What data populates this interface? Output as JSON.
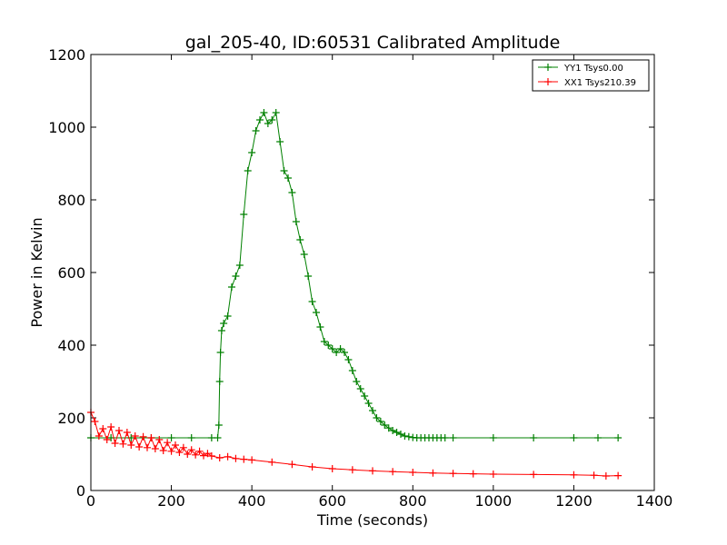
{
  "chart_data": {
    "type": "line",
    "title": "gal_205-40, ID:60531 Calibrated Amplitude",
    "xlabel": "Time (seconds)",
    "ylabel": "Power in Kelvin",
    "xlim": [
      0,
      1400
    ],
    "ylim": [
      0,
      1200
    ],
    "xticks": [
      "0",
      "200",
      "400",
      "600",
      "800",
      "1000",
      "1200",
      "1400"
    ],
    "yticks": [
      "0",
      "200",
      "400",
      "600",
      "800",
      "1000",
      "1200"
    ],
    "grid": false,
    "legend_position": "top-right",
    "marker": "+",
    "series": [
      {
        "name": "YY1 Tsys0.00",
        "color": "#008000",
        "x": [
          0,
          50,
          100,
          150,
          200,
          250,
          300,
          315,
          318,
          320,
          322,
          325,
          330,
          340,
          350,
          360,
          370,
          380,
          390,
          400,
          410,
          420,
          430,
          440,
          450,
          460,
          470,
          480,
          490,
          500,
          510,
          520,
          530,
          540,
          550,
          560,
          570,
          580,
          590,
          600,
          610,
          620,
          630,
          640,
          650,
          660,
          670,
          680,
          690,
          700,
          710,
          720,
          730,
          740,
          750,
          760,
          770,
          780,
          790,
          800,
          810,
          820,
          830,
          840,
          850,
          860,
          870,
          880,
          900,
          1000,
          1100,
          1200,
          1260,
          1310
        ],
        "values": [
          145,
          145,
          145,
          145,
          145,
          145,
          145,
          145,
          180,
          300,
          380,
          440,
          460,
          480,
          560,
          590,
          620,
          760,
          880,
          930,
          990,
          1020,
          1040,
          1010,
          1020,
          1040,
          960,
          880,
          860,
          820,
          740,
          690,
          650,
          590,
          520,
          490,
          450,
          410,
          400,
          390,
          380,
          390,
          380,
          360,
          330,
          300,
          280,
          260,
          240,
          220,
          200,
          190,
          180,
          172,
          165,
          160,
          155,
          150,
          148,
          146,
          145,
          145,
          145,
          145,
          145,
          145,
          145,
          145,
          145,
          145,
          145,
          145,
          145,
          145
        ]
      },
      {
        "name": "XX1 Tsys210.39",
        "color": "#ff0000",
        "x": [
          0,
          10,
          20,
          30,
          40,
          50,
          60,
          70,
          80,
          90,
          100,
          110,
          120,
          130,
          140,
          150,
          160,
          170,
          180,
          190,
          200,
          210,
          220,
          230,
          240,
          250,
          260,
          270,
          280,
          290,
          300,
          320,
          340,
          360,
          380,
          400,
          450,
          500,
          550,
          600,
          650,
          700,
          750,
          800,
          850,
          900,
          950,
          1000,
          1100,
          1200,
          1250,
          1280,
          1310
        ],
        "values": [
          215,
          190,
          150,
          170,
          140,
          175,
          130,
          165,
          128,
          160,
          125,
          150,
          120,
          148,
          118,
          145,
          115,
          140,
          110,
          132,
          108,
          125,
          105,
          118,
          100,
          112,
          98,
          108,
          96,
          102,
          95,
          90,
          93,
          88,
          86,
          84,
          78,
          72,
          65,
          60,
          57,
          54,
          52,
          50,
          48,
          47,
          46,
          45,
          44,
          43,
          42,
          40,
          41
        ]
      }
    ]
  }
}
